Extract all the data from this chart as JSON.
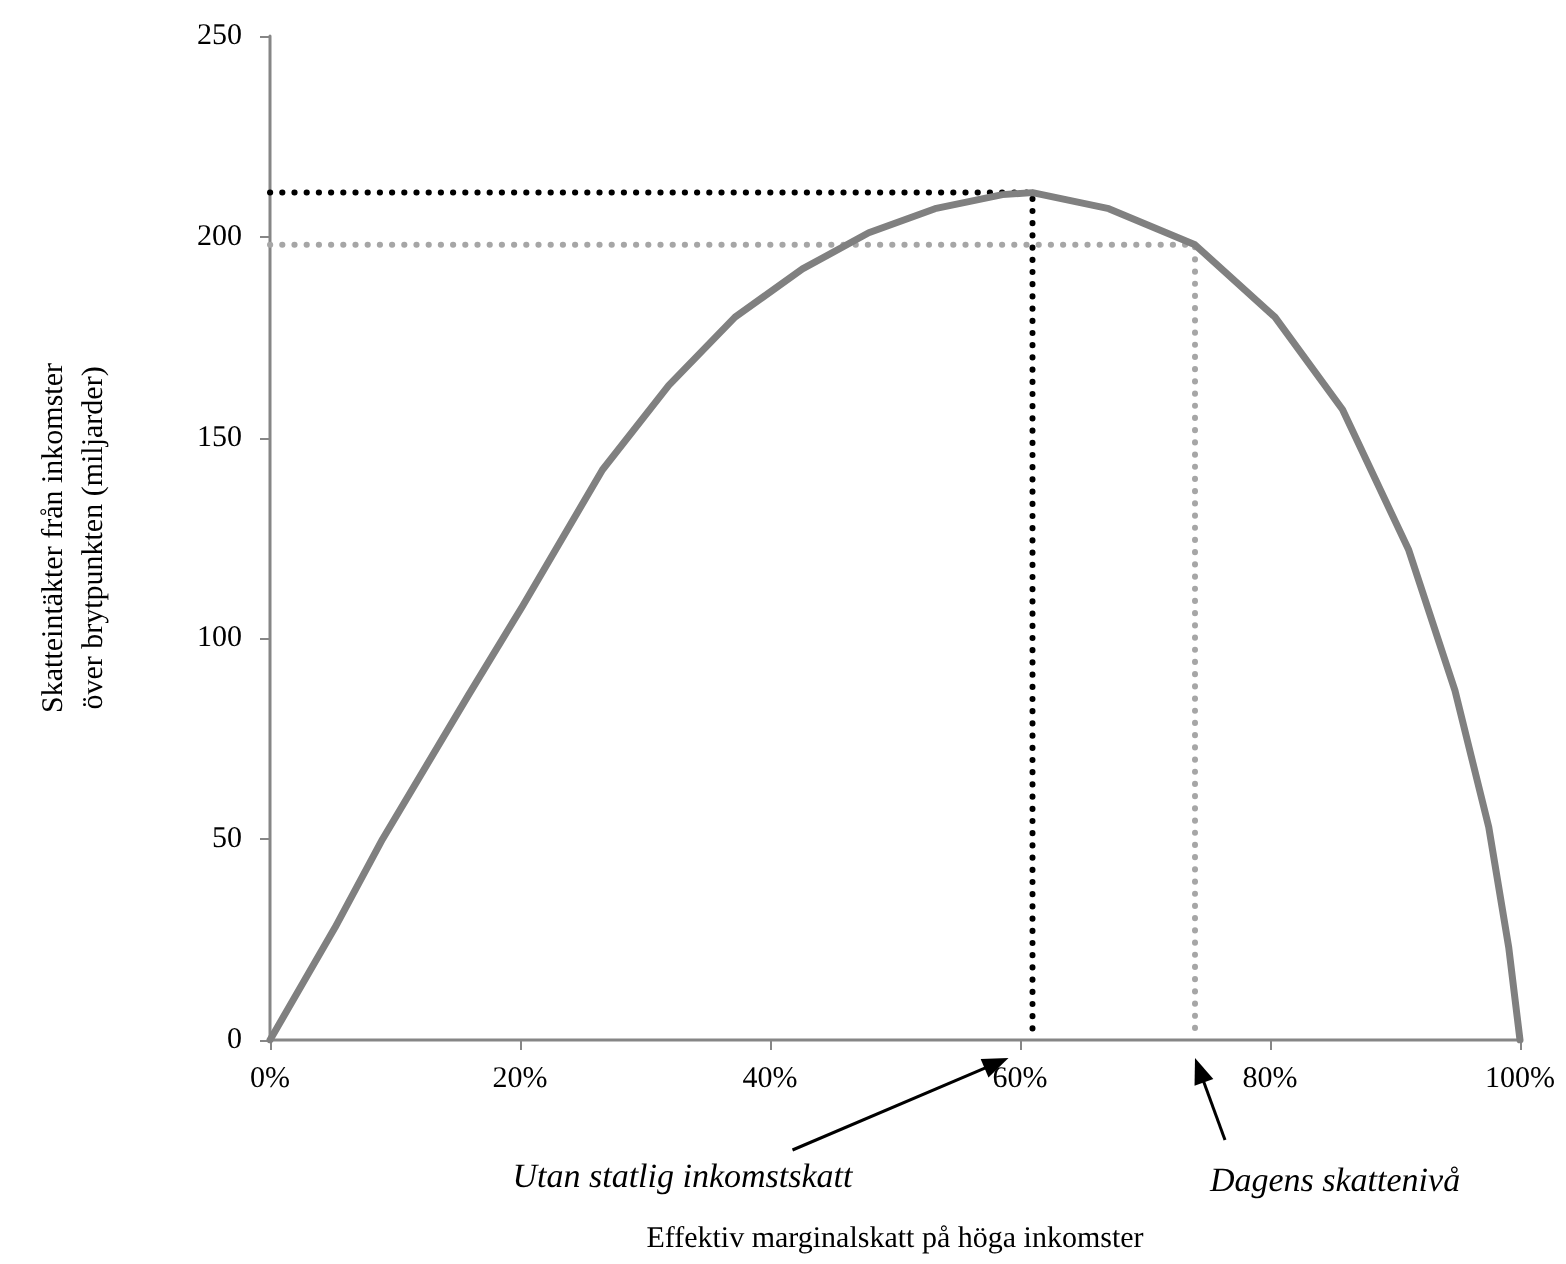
{
  "chart_data": {
    "type": "line",
    "xlabel": "Effektiv marginalskatt på höga inkomster",
    "ylabel": "Skatteintäkter från inkomster\növer brytpunkten (miljarder)",
    "xlim": [
      0,
      100
    ],
    "xticks": [
      {
        "value": 0,
        "label": "0%"
      },
      {
        "value": 20,
        "label": "20%"
      },
      {
        "value": 40,
        "label": "40%"
      },
      {
        "value": 60,
        "label": "60%"
      },
      {
        "value": 80,
        "label": "80%"
      },
      {
        "value": 100,
        "label": "100%"
      }
    ],
    "ylim": [
      0,
      250
    ],
    "yticks": [
      0,
      50,
      100,
      150,
      200,
      250
    ],
    "grid": false,
    "marker": "none",
    "series": [
      {
        "color": "#000000",
        "line_style": "dotted",
        "x": [
          0,
          61,
          61
        ],
        "values": [
          211,
          211,
          0
        ]
      },
      {
        "color": "#a6a6a6",
        "line_style": "dotted",
        "x": [
          0,
          74,
          74
        ],
        "values": [
          198,
          198,
          0
        ]
      },
      {
        "color": "#808080",
        "line_style": "solid",
        "x": [
          0,
          5.2,
          9,
          15.9,
          20.2,
          26.6,
          31.9,
          37.2,
          42.6,
          47.9,
          53.2,
          58.6,
          61,
          67.1,
          74,
          80.4,
          85.8,
          91.1,
          94.8,
          97.5,
          99.1,
          100
        ],
        "values": [
          0,
          28,
          50,
          86,
          108,
          142,
          163,
          180,
          192,
          201,
          207,
          210.5,
          211,
          207,
          198,
          180,
          157,
          122,
          87,
          53,
          23,
          0
        ]
      }
    ],
    "annotations": [
      "Utan statlig inkomstskatt",
      "Dagens skattenivå"
    ]
  }
}
